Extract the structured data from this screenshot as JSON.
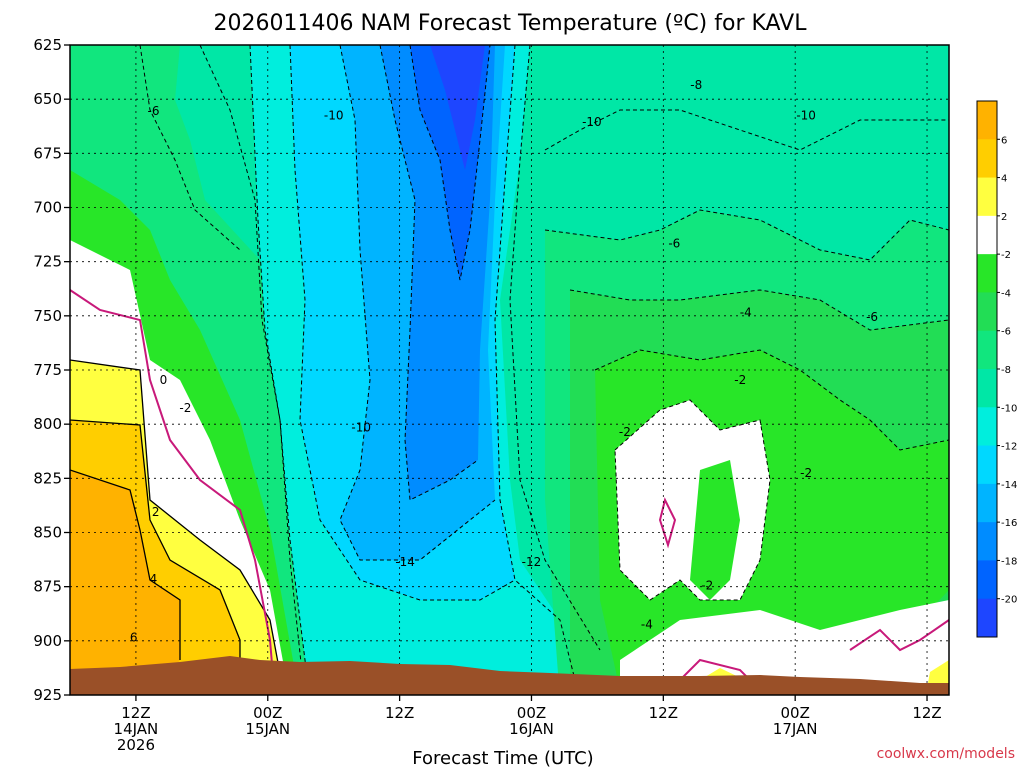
{
  "chart_data": {
    "type": "heatmap",
    "title": "2026011406 NAM Forecast Temperature (ºC) for KAVL",
    "xlabel": "Forecast Time (UTC)",
    "ylabel": "",
    "credit": "coolwx.com/models",
    "x_range_hours": [
      0,
      80
    ],
    "y_levels": [
      "625",
      "650",
      "675",
      "700",
      "725",
      "750",
      "775",
      "800",
      "825",
      "850",
      "875",
      "900",
      "925"
    ],
    "y_range_hpa": [
      625,
      925
    ],
    "x_ticks": [
      {
        "h": 6,
        "lines": [
          "12Z",
          "14JAN",
          "2026"
        ]
      },
      {
        "h": 18,
        "lines": [
          "00Z",
          "15JAN"
        ]
      },
      {
        "h": 30,
        "lines": [
          "12Z"
        ]
      },
      {
        "h": 42,
        "lines": [
          "00Z",
          "16JAN"
        ]
      },
      {
        "h": 54,
        "lines": [
          "12Z"
        ]
      },
      {
        "h": 66,
        "lines": [
          "00Z",
          "17JAN"
        ]
      },
      {
        "h": 78,
        "lines": [
          "12Z"
        ]
      }
    ],
    "colorbar": {
      "labels": [
        "6",
        "4",
        "2",
        "-2",
        "-4",
        "-6",
        "-8",
        "-10",
        "-12",
        "-14",
        "-16",
        "-18",
        "-20"
      ],
      "colors": [
        "#ffb200",
        "#ffce00",
        "#ffff40",
        "#ffffff",
        "#28e628",
        "#22dd55",
        "#11e67e",
        "#00e7a6",
        "#00eedd",
        "#00d8ff",
        "#00b4ff",
        "#008cff",
        "#0064ff",
        "#1e46ff"
      ]
    },
    "contour_labels": [
      {
        "text": "-6",
        "h": 7.6,
        "p": 656
      },
      {
        "text": "-10",
        "h": 24,
        "p": 658
      },
      {
        "text": "-10",
        "h": 47.5,
        "p": 661
      },
      {
        "text": "-8",
        "h": 57,
        "p": 644
      },
      {
        "text": "-10",
        "h": 67,
        "p": 658
      },
      {
        "text": "-6",
        "h": 55,
        "p": 717
      },
      {
        "text": "-4",
        "h": 61.5,
        "p": 749
      },
      {
        "text": "-6",
        "h": 73,
        "p": 751
      },
      {
        "text": "-2",
        "h": 61,
        "p": 780
      },
      {
        "text": "-2",
        "h": 50.5,
        "p": 804
      },
      {
        "text": "0",
        "h": 8.5,
        "p": 780
      },
      {
        "text": "-2",
        "h": 10.5,
        "p": 793
      },
      {
        "text": "-10",
        "h": 26.5,
        "p": 802
      },
      {
        "text": "2",
        "h": 7.8,
        "p": 841
      },
      {
        "text": "4",
        "h": 7.6,
        "p": 872
      },
      {
        "text": "6",
        "h": 5.8,
        "p": 899
      },
      {
        "text": "-14",
        "h": 30.5,
        "p": 864
      },
      {
        "text": "-12",
        "h": 42,
        "p": 864
      },
      {
        "text": "-2",
        "h": 67,
        "p": 823
      },
      {
        "text": "-2",
        "h": 58,
        "p": 875
      },
      {
        "text": "-4",
        "h": 52.5,
        "p": 893
      }
    ]
  }
}
